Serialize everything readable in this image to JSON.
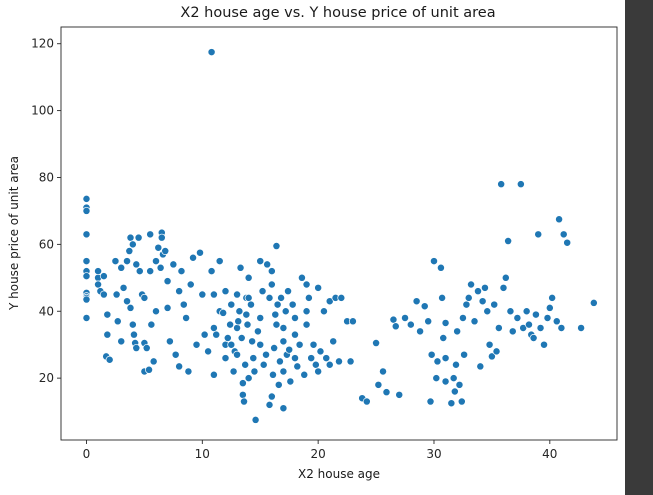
{
  "chart_data": {
    "type": "scatter",
    "title": "X2 house age vs. Y house price of unit area",
    "xlabel": "X2 house age",
    "ylabel": "Y house price of unit area",
    "xlim": [
      -2.2,
      45.8
    ],
    "ylim": [
      1.5,
      125
    ],
    "xticks": [
      0,
      10,
      20,
      30,
      40
    ],
    "yticks": [
      20,
      40,
      60,
      80,
      100,
      120
    ],
    "grid": false,
    "point_color": "#1f77b4",
    "points": [
      [
        0,
        73.6
      ],
      [
        0,
        71
      ],
      [
        0,
        70
      ],
      [
        0,
        63
      ],
      [
        0,
        55
      ],
      [
        0,
        52
      ],
      [
        0,
        50.5
      ],
      [
        0,
        45.5
      ],
      [
        0,
        44.5
      ],
      [
        0,
        44
      ],
      [
        0,
        43.5
      ],
      [
        0,
        38
      ],
      [
        1,
        50
      ],
      [
        1,
        52
      ],
      [
        1,
        48
      ],
      [
        1.2,
        46
      ],
      [
        1.5,
        50.5
      ],
      [
        1.5,
        45
      ],
      [
        1.8,
        39
      ],
      [
        1.8,
        33
      ],
      [
        1.7,
        26.5
      ],
      [
        2,
        25.5
      ],
      [
        2.5,
        55
      ],
      [
        2.6,
        45
      ],
      [
        2.7,
        37
      ],
      [
        3,
        53
      ],
      [
        3,
        31
      ],
      [
        3.2,
        47
      ],
      [
        3.5,
        55
      ],
      [
        3.5,
        43
      ],
      [
        3.7,
        58
      ],
      [
        3.8,
        62
      ],
      [
        3.8,
        41
      ],
      [
        4,
        60
      ],
      [
        4,
        36
      ],
      [
        4.1,
        33
      ],
      [
        4.2,
        30.5
      ],
      [
        4.3,
        29
      ],
      [
        4.3,
        54
      ],
      [
        4.5,
        62
      ],
      [
        4.6,
        52
      ],
      [
        4.8,
        45
      ],
      [
        5,
        44
      ],
      [
        5,
        30.5
      ],
      [
        5,
        22
      ],
      [
        5.2,
        29
      ],
      [
        5.4,
        22.5
      ],
      [
        5.5,
        63
      ],
      [
        5.5,
        52
      ],
      [
        5.6,
        36
      ],
      [
        5.8,
        25
      ],
      [
        6,
        55
      ],
      [
        6,
        40
      ],
      [
        6.2,
        59
      ],
      [
        6.4,
        53
      ],
      [
        6.5,
        63.5
      ],
      [
        6.5,
        62
      ],
      [
        6.6,
        57
      ],
      [
        6.8,
        58
      ],
      [
        7,
        49
      ],
      [
        7,
        41
      ],
      [
        7.2,
        31
      ],
      [
        7.5,
        54
      ],
      [
        7.7,
        27
      ],
      [
        8,
        23.5
      ],
      [
        8,
        46
      ],
      [
        8.2,
        52
      ],
      [
        8.4,
        42
      ],
      [
        8.6,
        38
      ],
      [
        8.8,
        22
      ],
      [
        9,
        48
      ],
      [
        9.2,
        56
      ],
      [
        9.5,
        30
      ],
      [
        9.8,
        57.5
      ],
      [
        10,
        45
      ],
      [
        10.2,
        33
      ],
      [
        10.5,
        28
      ],
      [
        10.8,
        117.5
      ],
      [
        10.8,
        52
      ],
      [
        11,
        45
      ],
      [
        11,
        35
      ],
      [
        11,
        21
      ],
      [
        11.2,
        33
      ],
      [
        11.5,
        55
      ],
      [
        11.5,
        40
      ],
      [
        11.8,
        39.5
      ],
      [
        12,
        46
      ],
      [
        12,
        26
      ],
      [
        12,
        30
      ],
      [
        12.2,
        32
      ],
      [
        12.4,
        36
      ],
      [
        12.5,
        42
      ],
      [
        12.5,
        30
      ],
      [
        12.7,
        22
      ],
      [
        12.8,
        28
      ],
      [
        13,
        45
      ],
      [
        13,
        35
      ],
      [
        13,
        27
      ],
      [
        13.1,
        37
      ],
      [
        13.2,
        40
      ],
      [
        13.3,
        53
      ],
      [
        13.4,
        32
      ],
      [
        13.5,
        18.5
      ],
      [
        13.5,
        15
      ],
      [
        13.6,
        13
      ],
      [
        13.7,
        24
      ],
      [
        13.8,
        39
      ],
      [
        13.8,
        44
      ],
      [
        13.9,
        36
      ],
      [
        14,
        20
      ],
      [
        14,
        44
      ],
      [
        14,
        50
      ],
      [
        14.2,
        42
      ],
      [
        14.3,
        31
      ],
      [
        14.4,
        26
      ],
      [
        14.5,
        22
      ],
      [
        14.6,
        7.5
      ],
      [
        14.8,
        34
      ],
      [
        15,
        55
      ],
      [
        15,
        30
      ],
      [
        15,
        38
      ],
      [
        15.2,
        46
      ],
      [
        15.3,
        24
      ],
      [
        15.5,
        27
      ],
      [
        15.6,
        54
      ],
      [
        15.8,
        12
      ],
      [
        15.8,
        44
      ],
      [
        16,
        52
      ],
      [
        16,
        48
      ],
      [
        16,
        14.5
      ],
      [
        16.1,
        21
      ],
      [
        16.2,
        29
      ],
      [
        16.3,
        39
      ],
      [
        16.4,
        59.5
      ],
      [
        16.4,
        36
      ],
      [
        16.5,
        42
      ],
      [
        16.6,
        18
      ],
      [
        16.7,
        25
      ],
      [
        16.8,
        44
      ],
      [
        17,
        31
      ],
      [
        17,
        11
      ],
      [
        17,
        22
      ],
      [
        17,
        35
      ],
      [
        17.2,
        40
      ],
      [
        17.3,
        27
      ],
      [
        17.4,
        46
      ],
      [
        17.5,
        28.5
      ],
      [
        17.6,
        19
      ],
      [
        17.8,
        42
      ],
      [
        18,
        33
      ],
      [
        18,
        26
      ],
      [
        18,
        38
      ],
      [
        18.2,
        23.5
      ],
      [
        18.4,
        30
      ],
      [
        18.6,
        50
      ],
      [
        18.8,
        21
      ],
      [
        19,
        48
      ],
      [
        19,
        36
      ],
      [
        19,
        40
      ],
      [
        19.2,
        44
      ],
      [
        19.4,
        26
      ],
      [
        19.6,
        30
      ],
      [
        19.8,
        24
      ],
      [
        20,
        47
      ],
      [
        20,
        22
      ],
      [
        20.2,
        28
      ],
      [
        20.5,
        40
      ],
      [
        20.7,
        26
      ],
      [
        21,
        43
      ],
      [
        21,
        24
      ],
      [
        21.3,
        31
      ],
      [
        21.5,
        44
      ],
      [
        21.8,
        25
      ],
      [
        22,
        44
      ],
      [
        22.5,
        37
      ],
      [
        22.8,
        25
      ],
      [
        23,
        37
      ],
      [
        23.8,
        14
      ],
      [
        24.2,
        13
      ],
      [
        25,
        30.5
      ],
      [
        25.2,
        18
      ],
      [
        25.6,
        22
      ],
      [
        25.9,
        15.8
      ],
      [
        26.5,
        37.5
      ],
      [
        26.7,
        35.5
      ],
      [
        27,
        15
      ],
      [
        27.5,
        38
      ],
      [
        28,
        36
      ],
      [
        28.5,
        43
      ],
      [
        28.8,
        34
      ],
      [
        29.2,
        41.5
      ],
      [
        29.5,
        37
      ],
      [
        29.7,
        13
      ],
      [
        29.8,
        27
      ],
      [
        30,
        55
      ],
      [
        30.2,
        20
      ],
      [
        30.3,
        25
      ],
      [
        30.6,
        53
      ],
      [
        30.7,
        44
      ],
      [
        30.8,
        32
      ],
      [
        31,
        19
      ],
      [
        31,
        26
      ],
      [
        31,
        36.5
      ],
      [
        31.5,
        12.5
      ],
      [
        31.7,
        20
      ],
      [
        31.8,
        16
      ],
      [
        31.9,
        24
      ],
      [
        32,
        34
      ],
      [
        32.2,
        18
      ],
      [
        32.4,
        13
      ],
      [
        32.5,
        38
      ],
      [
        32.6,
        27
      ],
      [
        32.8,
        42
      ],
      [
        33,
        44
      ],
      [
        33.2,
        48
      ],
      [
        33.5,
        37
      ],
      [
        33.8,
        46
      ],
      [
        34,
        23.5
      ],
      [
        34.2,
        43
      ],
      [
        34.4,
        47
      ],
      [
        34.6,
        40
      ],
      [
        34.8,
        30
      ],
      [
        35,
        26.5
      ],
      [
        35.2,
        42
      ],
      [
        35.4,
        28
      ],
      [
        35.6,
        35
      ],
      [
        35.8,
        78
      ],
      [
        36,
        47
      ],
      [
        36.2,
        50
      ],
      [
        36.4,
        61
      ],
      [
        36.6,
        40
      ],
      [
        36.8,
        34
      ],
      [
        37.2,
        38
      ],
      [
        37.5,
        78
      ],
      [
        37.7,
        35
      ],
      [
        38,
        40
      ],
      [
        38.2,
        36
      ],
      [
        38.4,
        33
      ],
      [
        38.6,
        32
      ],
      [
        38.8,
        39
      ],
      [
        39,
        63
      ],
      [
        39.2,
        35
      ],
      [
        39.5,
        30
      ],
      [
        39.8,
        38
      ],
      [
        40,
        41
      ],
      [
        40.2,
        44
      ],
      [
        40.6,
        37
      ],
      [
        40.8,
        67.5
      ],
      [
        41,
        35
      ],
      [
        41.2,
        63
      ],
      [
        41.5,
        60.5
      ],
      [
        42.7,
        35
      ],
      [
        43.8,
        42.5
      ]
    ]
  }
}
